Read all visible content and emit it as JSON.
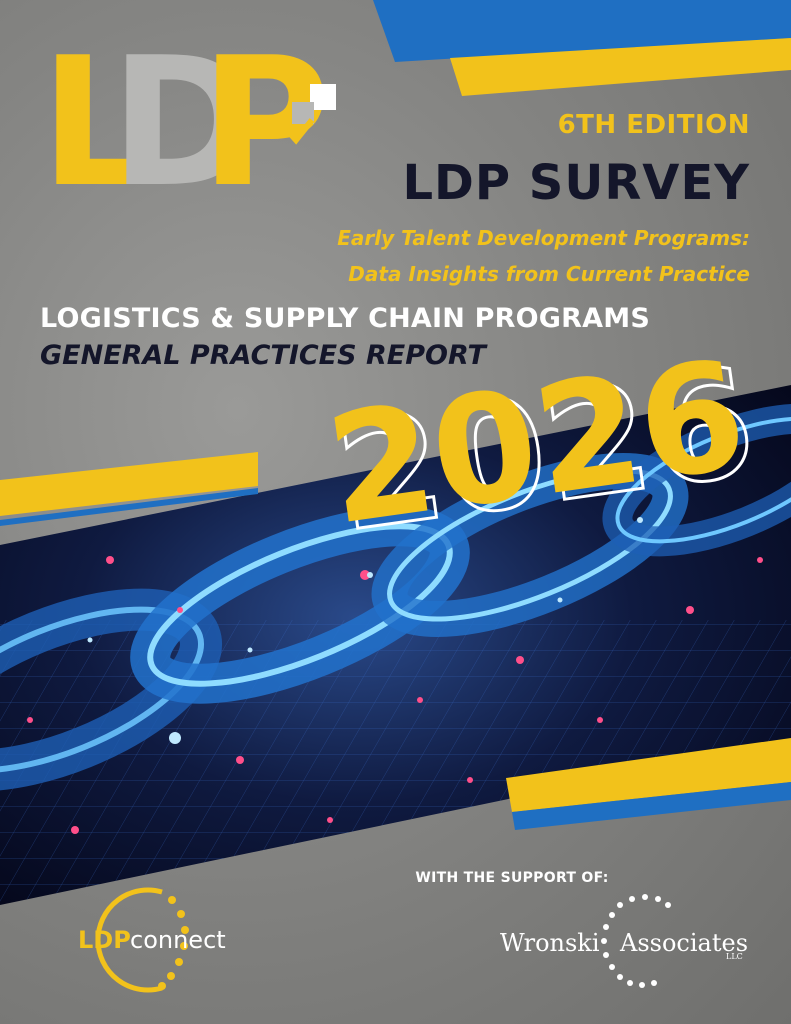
{
  "logo": {
    "letters": [
      "L",
      "D",
      "P"
    ],
    "icon": "checkbox-arrow-icon"
  },
  "edition": "6TH EDITION",
  "title": "LDP SURVEY",
  "subtitle_line1": "Early Talent Development Programs:",
  "subtitle_line2": "Data Insights from Current Practice",
  "programs": "LOGISTICS & SUPPLY CHAIN PROGRAMS",
  "report": "GENERAL PRACTICES REPORT",
  "year": "2026",
  "hero_image": "digital-chain-links-image",
  "support_label": "WITH THE SUPPORT OF:",
  "ldpconnect": {
    "ldp": "LDP",
    "connect": "connect"
  },
  "wronski": {
    "part1": "Wronski",
    "part2": "Associates",
    "suffix": "LLC"
  },
  "colors": {
    "yellow": "#f2c21b",
    "blue": "#1f6fc2",
    "navy": "#14162a",
    "gray": "#858583",
    "white": "#ffffff"
  }
}
